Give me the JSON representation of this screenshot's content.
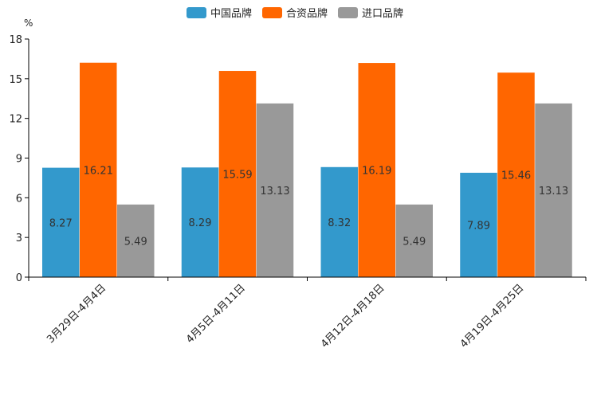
{
  "chart_data": {
    "type": "bar",
    "categories": [
      "3月29日-4月4日",
      "4月5日-4月11日",
      "4月12日-4月18日",
      "4月19日-4月25日"
    ],
    "series": [
      {
        "name": "中国品牌",
        "color": "#3399cc",
        "values": [
          8.27,
          8.29,
          8.32,
          7.89
        ]
      },
      {
        "name": "合资品牌",
        "color": "#ff6600",
        "values": [
          16.21,
          15.59,
          16.19,
          15.46
        ]
      },
      {
        "name": "进口品牌",
        "color": "#999999",
        "values": [
          5.49,
          13.13,
          5.49,
          13.13
        ]
      }
    ],
    "yunit": "%",
    "ylim": [
      0,
      18
    ],
    "yticks": [
      0,
      3,
      6,
      9,
      12,
      15,
      18
    ],
    "legend": "top-center",
    "grid": false
  }
}
